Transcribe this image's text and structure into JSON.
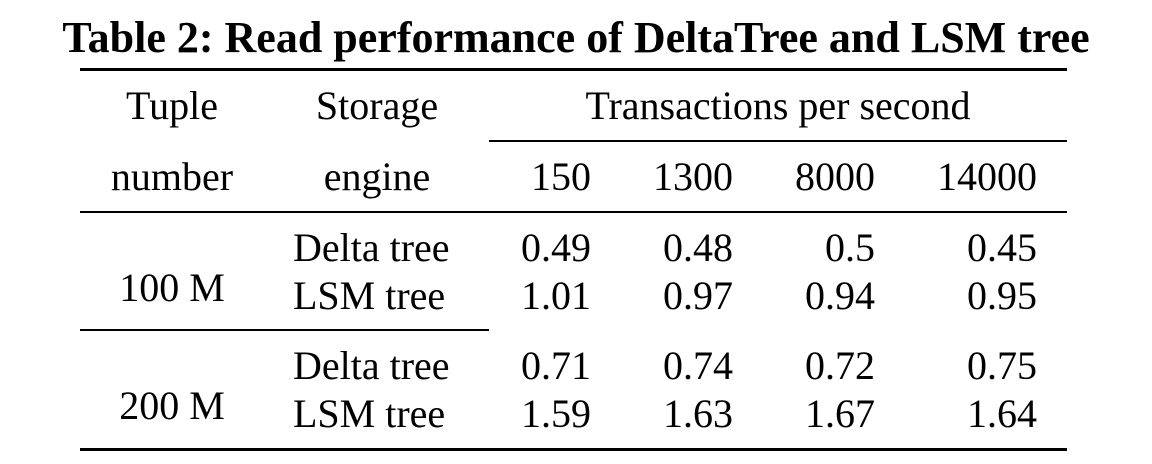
{
  "caption": "Table 2: Read performance of DeltaTree and LSM tree",
  "header": {
    "col1_line1": "Tuple",
    "col1_line2": "number",
    "col2_line1": "Storage",
    "col2_line2": "engine",
    "group_label": "Transactions per second",
    "tps_columns": [
      "150",
      "1300",
      "8000",
      "14000"
    ]
  },
  "groups": [
    {
      "tuple_number": "100 M",
      "rows": [
        {
          "engine": "Delta tree",
          "values": [
            "0.49",
            "0.48",
            "0.5",
            "0.45"
          ]
        },
        {
          "engine": "LSM tree",
          "values": [
            "1.01",
            "0.97",
            "0.94",
            "0.95"
          ]
        }
      ]
    },
    {
      "tuple_number": "200 M",
      "rows": [
        {
          "engine": "Delta tree",
          "values": [
            "0.71",
            "0.74",
            "0.72",
            "0.75"
          ]
        },
        {
          "engine": "LSM tree",
          "values": [
            "1.59",
            "1.63",
            "1.67",
            "1.64"
          ]
        }
      ]
    }
  ]
}
